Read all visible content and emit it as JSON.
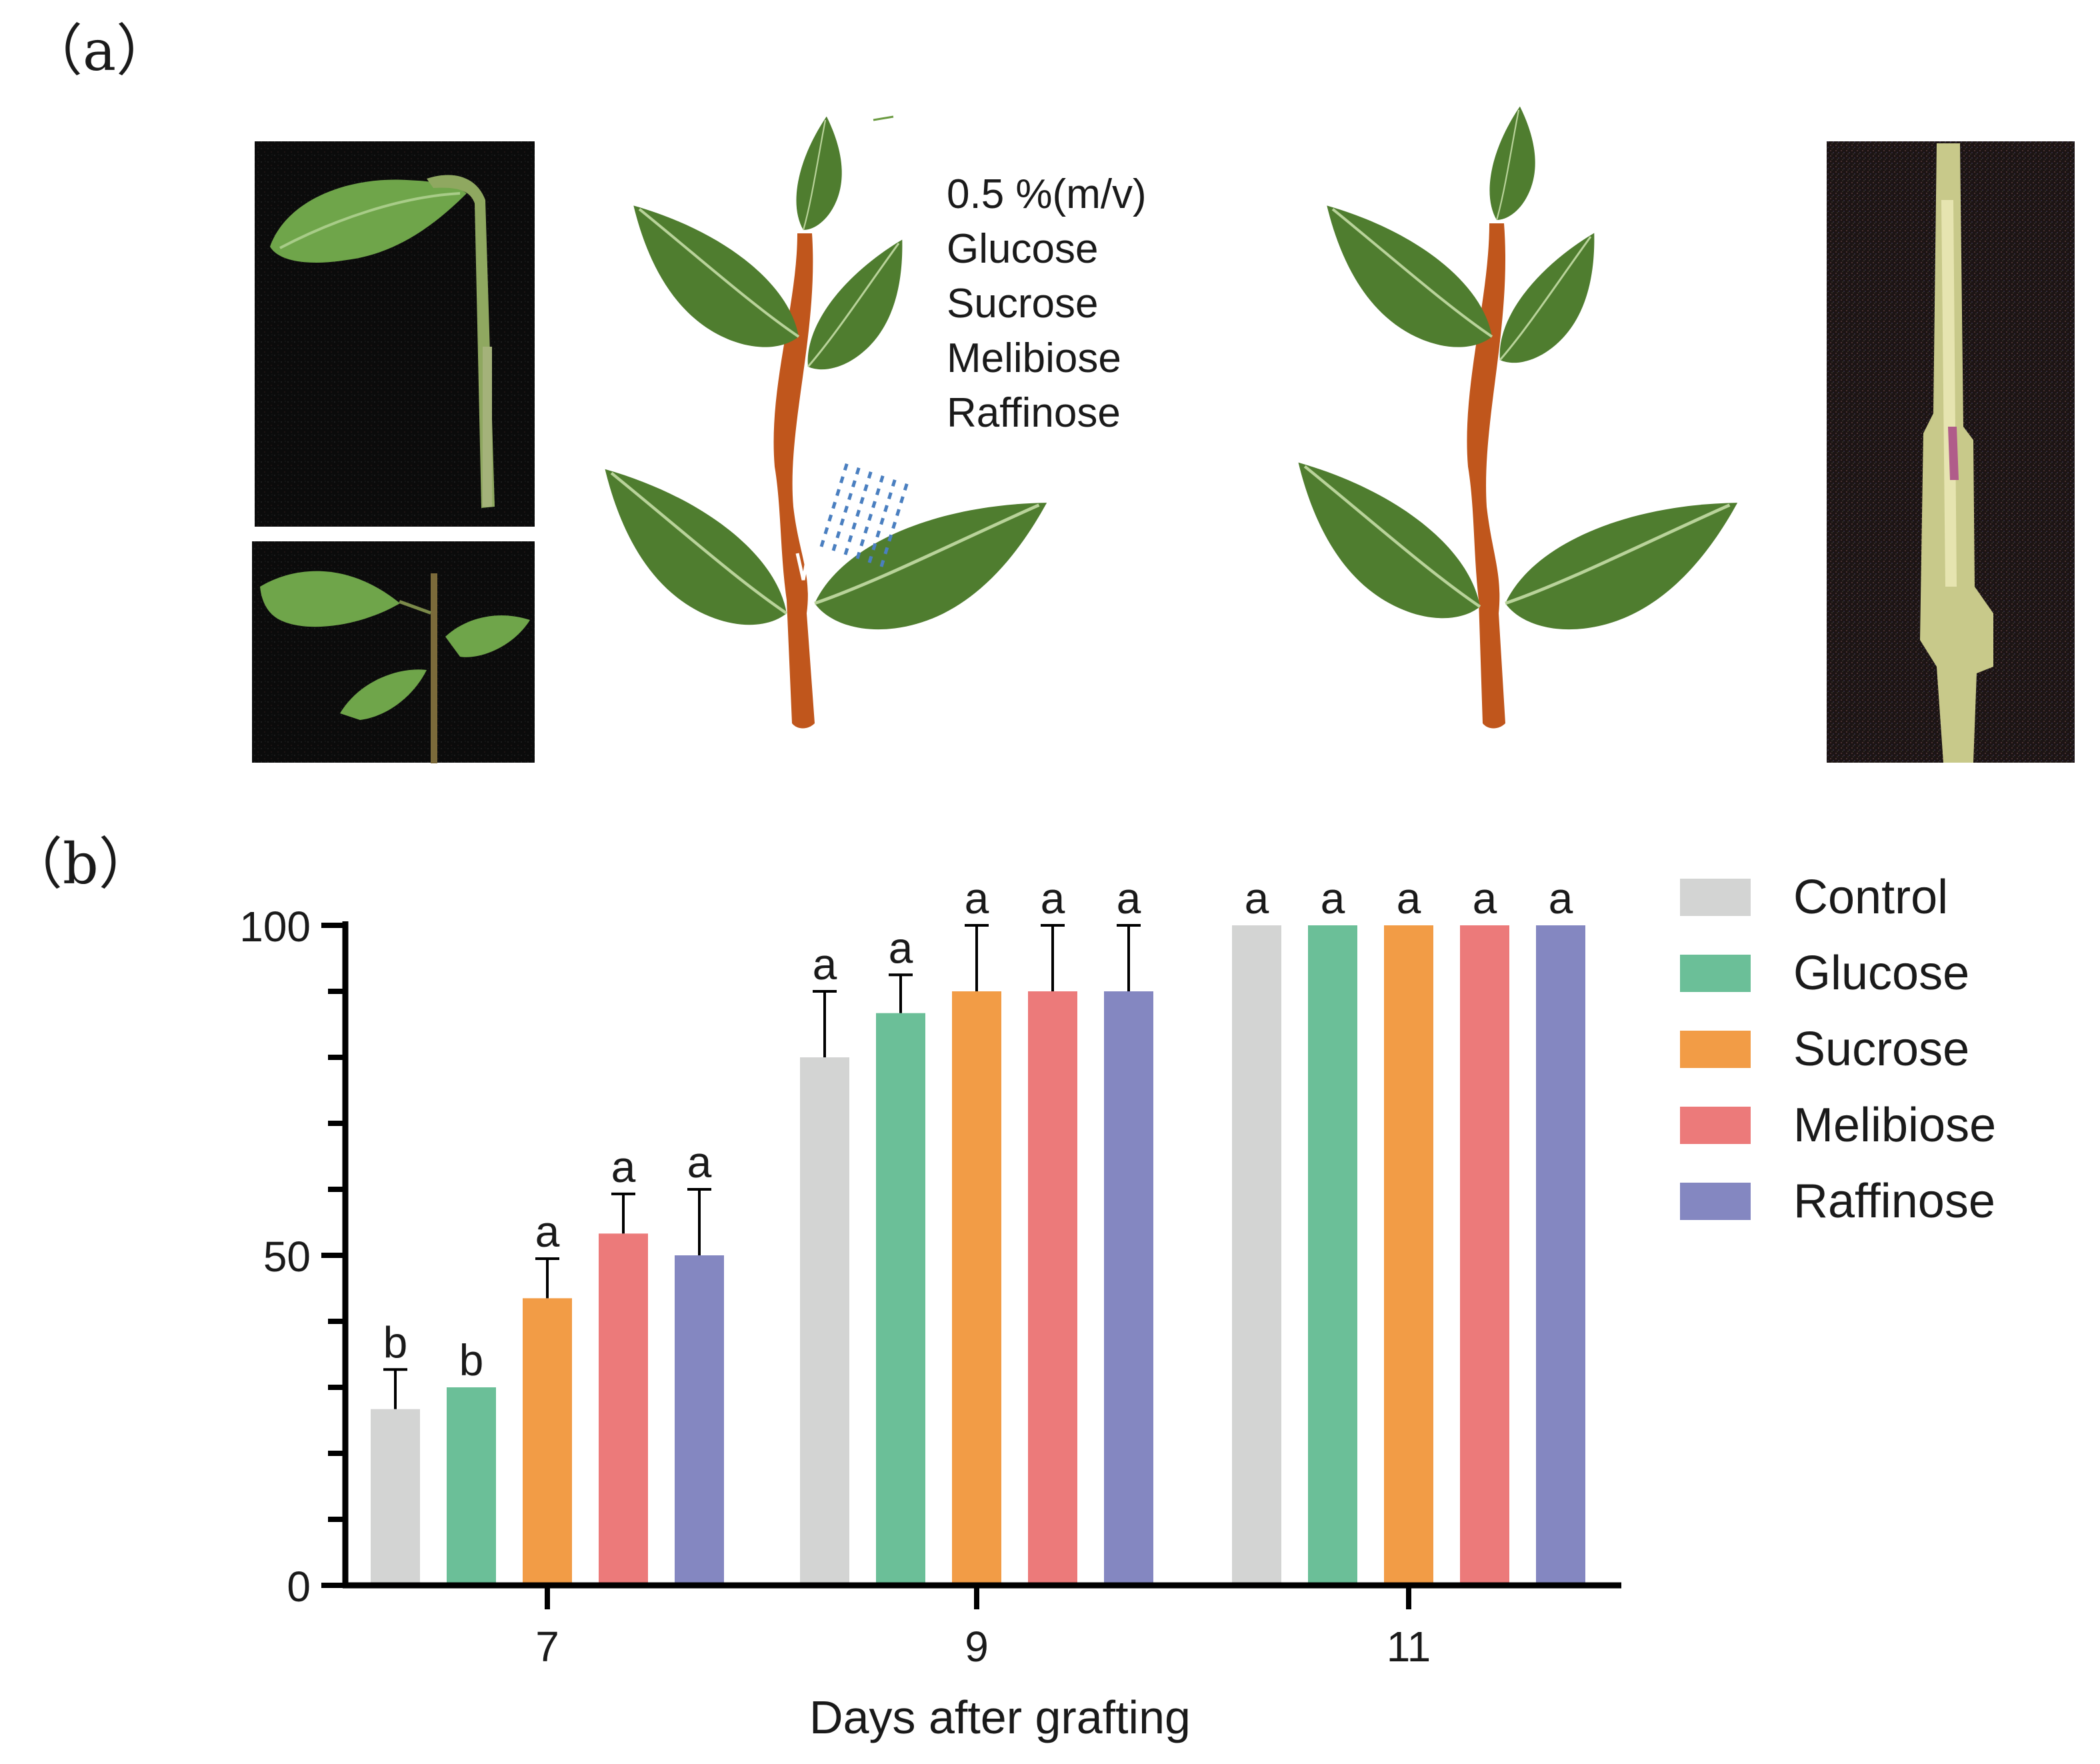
{
  "panel_a": {
    "label": "（a）",
    "treatment_lines": [
      "0.5 %(m/v)",
      "Glucose",
      "Sucrose",
      "Melibiose",
      "Raffinose"
    ],
    "colors": {
      "leaf": "#4f7d2f",
      "stem": "#c0561c",
      "spray": "#4a7fc0",
      "photo_bg": "#0d0d0d"
    }
  },
  "chart_data": {
    "type": "bar",
    "panel_label": "（b）",
    "categories": [
      "7",
      "9",
      "11"
    ],
    "xlabel": "Days after grafting",
    "ylabel": "",
    "ylim": [
      0,
      100
    ],
    "yticks": [
      "0",
      "50",
      "100"
    ],
    "legend_position": "right",
    "series": [
      {
        "name": "Control",
        "color": "#d3d4d3",
        "values": [
          26.7,
          80,
          100
        ],
        "errors": [
          6.0,
          10.0,
          0
        ],
        "letters": [
          "b",
          "a",
          "a"
        ]
      },
      {
        "name": "Glucose",
        "color": "#6bbf98",
        "values": [
          30,
          86.7,
          100
        ],
        "errors": [
          0,
          5.8,
          0
        ],
        "letters": [
          "b",
          "a",
          "a"
        ]
      },
      {
        "name": "Sucrose",
        "color": "#f29c46",
        "values": [
          43.5,
          90,
          100
        ],
        "errors": [
          6.0,
          10.0,
          0
        ],
        "letters": [
          "a",
          "a",
          "a"
        ]
      },
      {
        "name": "Melibiose",
        "color": "#ec7a7a",
        "values": [
          53.3,
          90,
          100
        ],
        "errors": [
          6.0,
          10.0,
          0
        ],
        "letters": [
          "a",
          "a",
          "a"
        ]
      },
      {
        "name": "Raffinose",
        "color": "#8487c1",
        "values": [
          50,
          90,
          100
        ],
        "errors": [
          10.0,
          10.0,
          0
        ],
        "letters": [
          "a",
          "a",
          "a"
        ]
      }
    ]
  }
}
